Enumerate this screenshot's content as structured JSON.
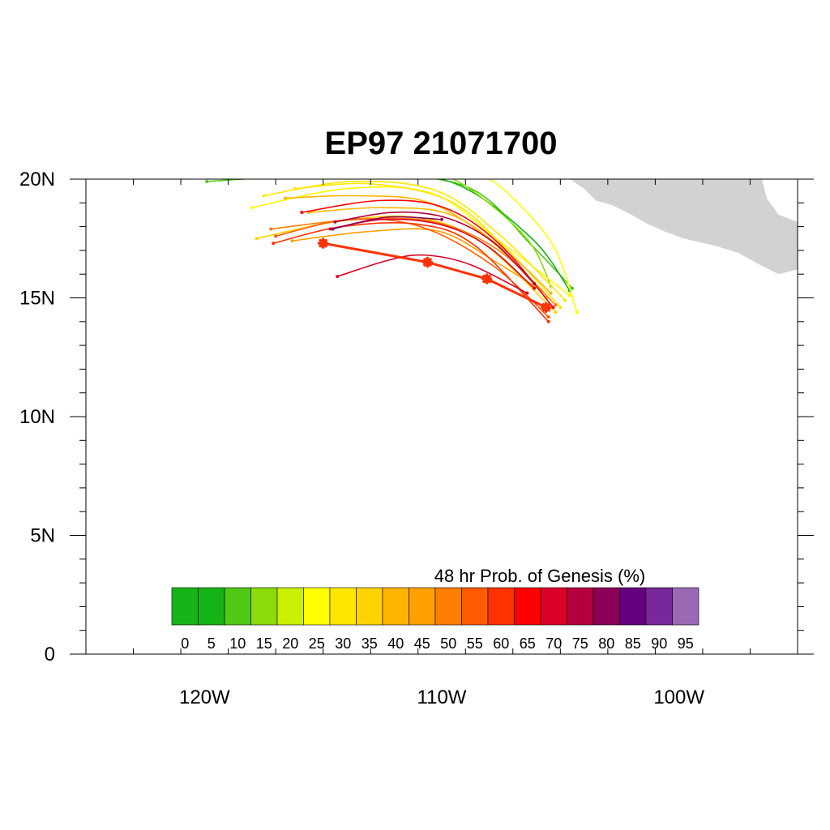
{
  "chart_data": {
    "type": "line",
    "title": "EP97 21071700",
    "xlim": [
      -125,
      -95
    ],
    "ylim": [
      0,
      20
    ],
    "x_ticks": [
      {
        "value": -120,
        "label": "120W"
      },
      {
        "value": -110,
        "label": "110W"
      },
      {
        "value": -100,
        "label": "100W"
      }
    ],
    "y_ticks": [
      {
        "value": 0,
        "label": "0"
      },
      {
        "value": 5,
        "label": "5N"
      },
      {
        "value": 10,
        "label": "10N"
      },
      {
        "value": 15,
        "label": "15N"
      },
      {
        "value": 20,
        "label": "20N"
      }
    ],
    "colorbar": {
      "title": "48 hr Prob. of Genesis (%)",
      "labels": [
        "0",
        "5",
        "10",
        "15",
        "20",
        "25",
        "30",
        "35",
        "40",
        "45",
        "50",
        "55",
        "60",
        "65",
        "70",
        "75",
        "80",
        "85",
        "90",
        "95"
      ],
      "colors": [
        "#16b416",
        "#14b414",
        "#50c814",
        "#8cdc0a",
        "#c8f000",
        "#ffff00",
        "#ffe600",
        "#ffd200",
        "#ffb400",
        "#ffa000",
        "#ff7d00",
        "#ff5a00",
        "#ff3200",
        "#ff0000",
        "#dc0028",
        "#b4003c",
        "#8c005a",
        "#64007d",
        "#78289b",
        "#9b69b4"
      ]
    },
    "land_color": "#d2d2d2",
    "land": [
      [
        -104.6,
        20.0
      ],
      [
        -104.0,
        19.6
      ],
      [
        -103.5,
        19.1
      ],
      [
        -102.8,
        18.9
      ],
      [
        -102.0,
        18.5
      ],
      [
        -101.3,
        18.1
      ],
      [
        -100.6,
        17.8
      ],
      [
        -99.8,
        17.5
      ],
      [
        -98.5,
        17.2
      ],
      [
        -97.5,
        16.9
      ],
      [
        -96.6,
        16.4
      ],
      [
        -95.8,
        16.0
      ],
      [
        -95.0,
        16.2
      ],
      [
        -95.0,
        18.2
      ],
      [
        -95.8,
        18.5
      ],
      [
        -96.3,
        19.2
      ],
      [
        -96.5,
        20.0
      ]
    ],
    "series": [
      {
        "prob": 60,
        "points": [
          [
            -115.0,
            17.3
          ],
          [
            -110.6,
            16.5
          ],
          [
            -108.1,
            15.8
          ],
          [
            -105.6,
            14.6
          ]
        ],
        "markers": [
          [
            -115.0,
            17.3
          ],
          [
            -110.6,
            16.5
          ],
          [
            -108.1,
            15.8
          ],
          [
            -105.6,
            14.6
          ]
        ],
        "width": 3
      },
      {
        "prob": 10,
        "points": [
          [
            -119.9,
            19.9
          ],
          [
            -114,
            20.2
          ],
          [
            -109,
            19.7
          ],
          [
            -106.2,
            17.2
          ],
          [
            -104.5,
            15.4
          ]
        ]
      },
      {
        "prob": 5,
        "points": [
          [
            -113,
            20.3
          ],
          [
            -109.4,
            19.8
          ],
          [
            -106.2,
            17.5
          ],
          [
            -104.6,
            15.3
          ]
        ]
      },
      {
        "prob": 15,
        "points": [
          [
            -112,
            20.4
          ],
          [
            -109.5,
            20
          ],
          [
            -106.5,
            17.6
          ],
          [
            -105.4,
            15.5
          ]
        ]
      },
      {
        "prob": 25,
        "points": [
          [
            -108.5,
            20.3
          ],
          [
            -107.2,
            19.4
          ],
          [
            -105.3,
            17.2
          ],
          [
            -104.3,
            14.4
          ]
        ]
      },
      {
        "prob": 25,
        "points": [
          [
            -118.0,
            18.8
          ],
          [
            -114,
            19.6
          ],
          [
            -110.4,
            19.4
          ],
          [
            -107.7,
            17.5
          ],
          [
            -104.6,
            15.1
          ]
        ]
      },
      {
        "prob": 30,
        "points": [
          [
            -117.5,
            19.3
          ],
          [
            -113.8,
            19.9
          ],
          [
            -110.2,
            19.5
          ],
          [
            -107.5,
            17.6
          ],
          [
            -104.8,
            14.9
          ]
        ]
      },
      {
        "prob": 30,
        "points": [
          [
            -116.2,
            19.6
          ],
          [
            -113,
            19.8
          ],
          [
            -109.7,
            19.1
          ],
          [
            -107.3,
            17.1
          ],
          [
            -105.0,
            14.6
          ]
        ]
      },
      {
        "prob": 35,
        "points": [
          [
            -117.8,
            17.5
          ],
          [
            -114.5,
            18.2
          ],
          [
            -111.2,
            18.4
          ],
          [
            -108.4,
            17.4
          ],
          [
            -105.2,
            14.4
          ]
        ]
      },
      {
        "prob": 40,
        "points": [
          [
            -116.6,
            19.2
          ],
          [
            -113.5,
            19.3
          ],
          [
            -110.5,
            19.0
          ],
          [
            -107.8,
            17.3
          ],
          [
            -105.6,
            15.0
          ]
        ]
      },
      {
        "prob": 40,
        "points": [
          [
            -115.6,
            18.6
          ],
          [
            -112.5,
            18.8
          ],
          [
            -109.6,
            18.5
          ],
          [
            -107.1,
            16.8
          ],
          [
            -105.4,
            15.2
          ]
        ]
      },
      {
        "prob": 45,
        "points": [
          [
            -116.3,
            17.4
          ],
          [
            -113,
            17.8
          ],
          [
            -110.1,
            17.8
          ],
          [
            -107.7,
            16.5
          ],
          [
            -105.8,
            15.3
          ]
        ]
      },
      {
        "prob": 50,
        "points": [
          [
            -117.2,
            17.9
          ],
          [
            -113.6,
            18.3
          ],
          [
            -110.3,
            18.2
          ],
          [
            -107.6,
            17.0
          ],
          [
            -105.2,
            14.7
          ]
        ]
      },
      {
        "prob": 55,
        "points": [
          [
            -117.0,
            17.6
          ],
          [
            -113.9,
            18.3
          ],
          [
            -110.9,
            18.0
          ],
          [
            -107.9,
            16.4
          ],
          [
            -105.5,
            14.2
          ]
        ]
      },
      {
        "prob": 60,
        "points": [
          [
            -117.1,
            17.3
          ],
          [
            -114.2,
            18.0
          ],
          [
            -111.0,
            18.1
          ],
          [
            -108.6,
            17.2
          ],
          [
            -105.5,
            14.0
          ]
        ]
      },
      {
        "prob": 65,
        "points": [
          [
            -115.9,
            18.6
          ],
          [
            -112.6,
            19.1
          ],
          [
            -109.9,
            18.8
          ],
          [
            -107.6,
            17.3
          ],
          [
            -105.3,
            14.6
          ]
        ]
      },
      {
        "prob": 70,
        "points": [
          [
            -114.4,
            15.9
          ],
          [
            -112.2,
            16.6
          ],
          [
            -110.7,
            16.8
          ],
          [
            -108.8,
            16.4
          ],
          [
            -106.4,
            15.2
          ]
        ]
      },
      {
        "prob": 70,
        "points": [
          [
            -114.7,
            17.9
          ],
          [
            -112.5,
            18.3
          ],
          [
            -110.1,
            18.1
          ],
          [
            -108.1,
            17.2
          ],
          [
            -106.1,
            15.4
          ]
        ]
      },
      {
        "prob": 75,
        "points": [
          [
            -114.5,
            18.2
          ],
          [
            -112.1,
            18.6
          ],
          [
            -109.9,
            18.4
          ],
          [
            -107.9,
            17.4
          ],
          [
            -106.1,
            15.6
          ]
        ]
      },
      {
        "prob": 80,
        "points": [
          [
            -114.6,
            17.9
          ],
          [
            -112.3,
            18.4
          ],
          [
            -110.0,
            18.3
          ]
        ]
      }
    ]
  }
}
